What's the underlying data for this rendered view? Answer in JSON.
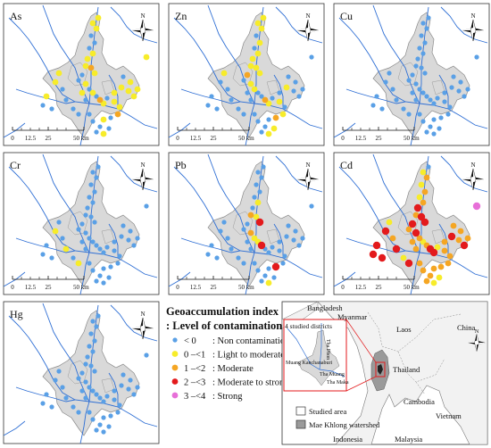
{
  "panels": [
    {
      "element": "As"
    },
    {
      "element": "Zn"
    },
    {
      "element": "Cu"
    },
    {
      "element": "Cr"
    },
    {
      "element": "Pb"
    },
    {
      "element": "Cd"
    },
    {
      "element": "Hg"
    }
  ],
  "scale_bar": {
    "ticks": [
      "0",
      "12.5",
      "25",
      "50 km"
    ]
  },
  "north_label": "N",
  "legend": {
    "title": "Geoaccumulation index",
    "subtitle": ": Level of contamination",
    "items": [
      {
        "range": "< 0",
        "label": ": Non contamination",
        "color": "#5aa0e6"
      },
      {
        "range": "0 –<1",
        "label": ": Light to moderate",
        "color": "#f7ec2a"
      },
      {
        "range": "1 –<2",
        "label": ": Moderate",
        "color": "#f5a623"
      },
      {
        "range": "2 –<3",
        "label": ": Moderate to strong",
        "color": "#e31a1c"
      },
      {
        "range": "3 –<4",
        "label": ": Strong",
        "color": "#e76fd8"
      }
    ]
  },
  "locator": {
    "countries": [
      "Bangladesh",
      "Myanmar",
      "Laos",
      "China",
      "Thailand",
      "Cambodia",
      "Vietnam",
      "Indonesia",
      "Malaysia"
    ],
    "inset_title": "4 studied districts",
    "districts": [
      "Tha Phon",
      "Muang Kanchanaburi",
      "Tha Muang",
      "Tha Maka"
    ],
    "key": [
      {
        "label": "Studied area"
      },
      {
        "label": "Mae Khlong watershed"
      }
    ]
  }
}
